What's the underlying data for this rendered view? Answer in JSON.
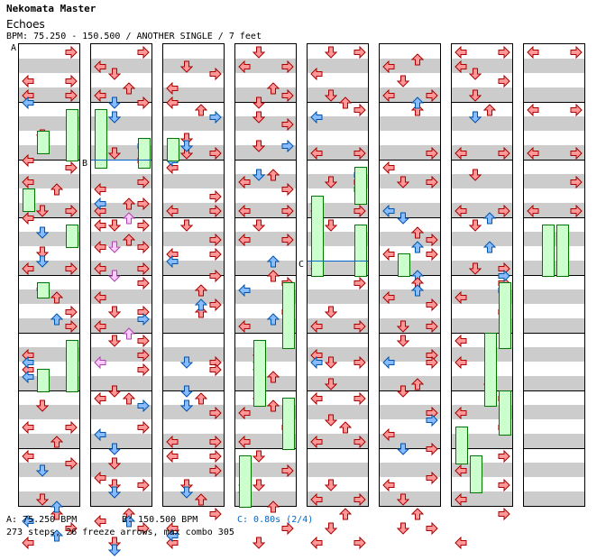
{
  "header": {
    "artist": "Nekomata Master",
    "title": "Echoes",
    "bpm_line": "BPM: 75.250 - 150.500 / ANOTHER SINGLE / 7 feet"
  },
  "markers": {
    "a": "A",
    "b": "B",
    "c": "C"
  },
  "legend": {
    "a": "A: 75.250 BPM",
    "b": "B: 150.500 BPM",
    "c": "C: 0.80s (2/4)"
  },
  "summary": "273 steps, 26 freeze arrows, max combo 305",
  "colors": {
    "red": "#ff9999",
    "blue": "#88bbff",
    "green": "#66ff66",
    "pink": "#ffccff",
    "stripe": "#cccccc",
    "freeze": "#ccffcc",
    "marker_c": "#0066cc"
  },
  "chart": {
    "columns": 8,
    "lane_order": [
      "left",
      "down",
      "up",
      "right"
    ]
  }
}
